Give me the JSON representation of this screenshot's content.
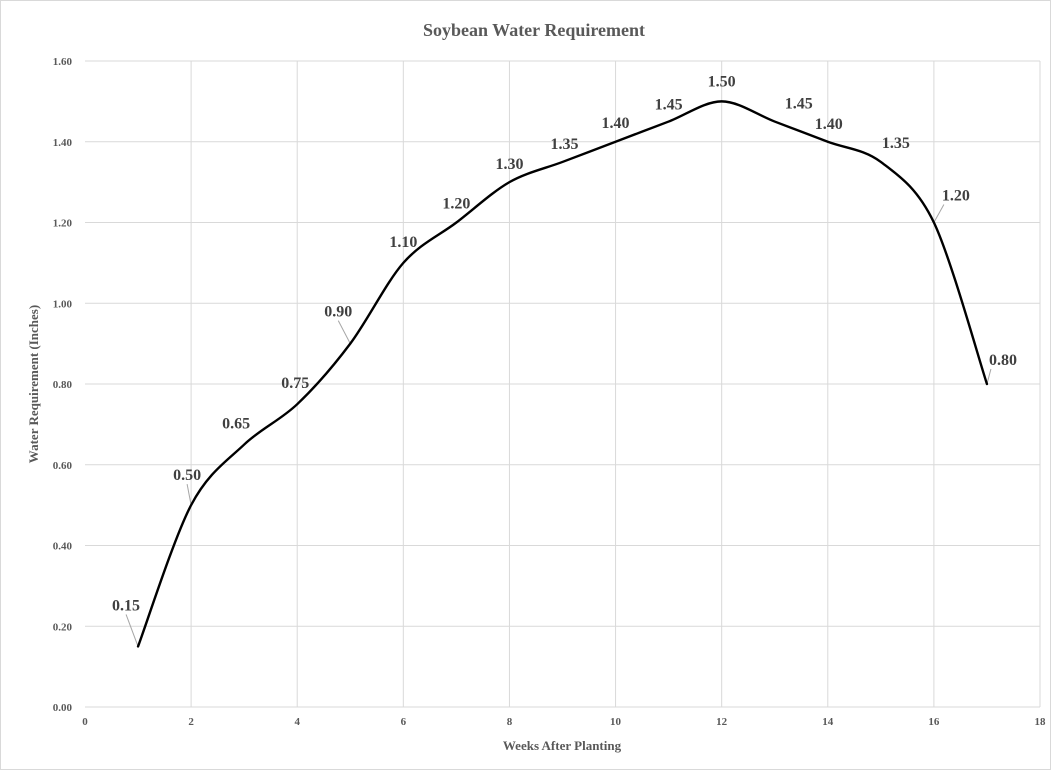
{
  "chart_data": {
    "type": "line",
    "title": "Soybean Water Requirement",
    "xlabel": "Weeks After Planting",
    "ylabel": "Water Requirement (Inches)",
    "xlim": [
      0,
      18
    ],
    "ylim": [
      0,
      1.6
    ],
    "x_ticks": [
      0,
      2,
      4,
      6,
      8,
      10,
      12,
      14,
      16,
      18
    ],
    "y_ticks": [
      0,
      0.2,
      0.4,
      0.6,
      0.8,
      1.0,
      1.2,
      1.4,
      1.6
    ],
    "y_tick_labels": [
      "0.00",
      "0.20",
      "0.40",
      "0.60",
      "0.80",
      "1.00",
      "1.20",
      "1.40",
      "1.60"
    ],
    "x_tick_labels": [
      "0",
      "2",
      "4",
      "6",
      "8",
      "10",
      "12",
      "14",
      "16",
      "18"
    ],
    "grid": true,
    "smooth": true,
    "series": [
      {
        "x": [
          1,
          2,
          3,
          4,
          5,
          6,
          7,
          8,
          9,
          10,
          11,
          12,
          13,
          14,
          15,
          16,
          17
        ],
        "y": [
          0.15,
          0.5,
          0.65,
          0.75,
          0.9,
          1.1,
          1.2,
          1.3,
          1.35,
          1.4,
          1.45,
          1.5,
          1.45,
          1.4,
          1.35,
          1.2,
          0.8
        ],
        "labels": [
          "0.15",
          "0.50",
          "0.65",
          "0.75",
          "0.90",
          "1.10",
          "1.20",
          "1.30",
          "1.35",
          "1.40",
          "1.45",
          "1.50",
          "1.45",
          "1.40",
          "1.35",
          "1.20",
          "0.80"
        ],
        "color": "#000000"
      }
    ]
  }
}
